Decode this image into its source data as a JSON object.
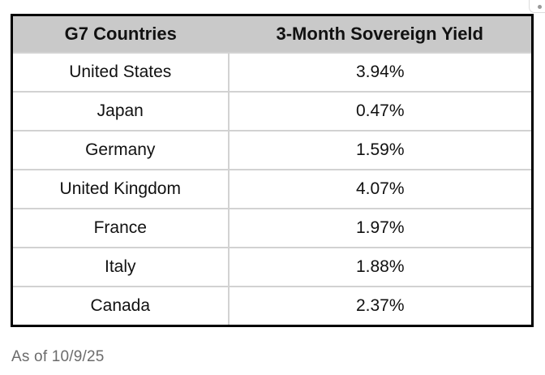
{
  "chart_data": {
    "type": "table",
    "columns": [
      "G7 Countries",
      "3-Month Sovereign Yield"
    ],
    "rows": [
      [
        "United States",
        "3.94%"
      ],
      [
        "Japan",
        "0.47%"
      ],
      [
        "Germany",
        "1.59%"
      ],
      [
        "United Kingdom",
        "4.07%"
      ],
      [
        "France",
        "1.97%"
      ],
      [
        "Italy",
        "1.88%"
      ],
      [
        "Canada",
        "2.37%"
      ]
    ],
    "values_percent": [
      3.94,
      0.47,
      1.59,
      4.07,
      1.97,
      1.88,
      2.37
    ],
    "note": "As of 10/9/25"
  },
  "footer": {
    "as_of_label": "As of 10/9/25"
  },
  "colors": {
    "header_bg": "#c9c9c9",
    "outer_border": "#000000",
    "inner_divider": "#d2d2d2",
    "body_text": "#111111",
    "footer_text": "#6b6b6b"
  }
}
